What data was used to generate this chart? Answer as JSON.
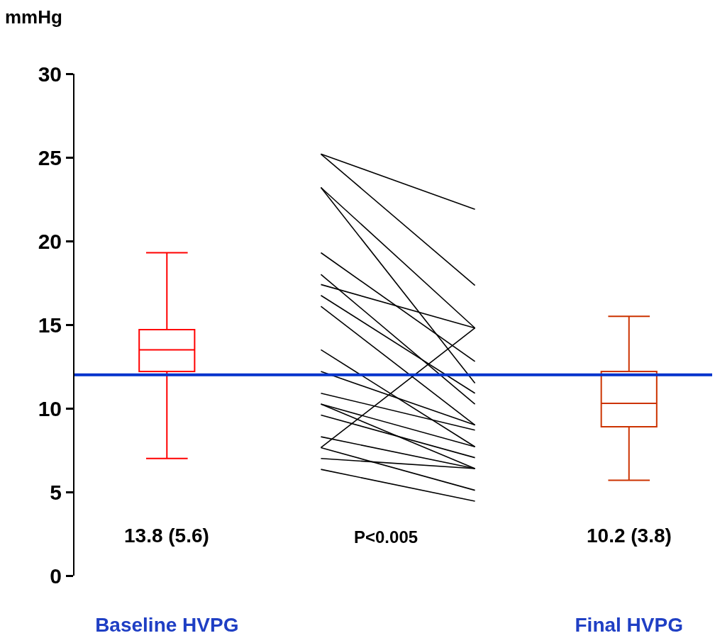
{
  "chart_data": {
    "type": "box",
    "ylabel": "mmHg",
    "categories": [
      "Baseline HVPG",
      null,
      null,
      "Final HVPG"
    ],
    "boxes": [
      {
        "low": 7.0,
        "q1": 12.2,
        "median": 13.5,
        "q3": 14.7,
        "high": 19.3
      },
      null,
      null,
      {
        "low": 5.7,
        "q1": 8.9,
        "median": 10.3,
        "q3": 12.2,
        "high": 15.5
      }
    ],
    "colors": [
      "#ff0000",
      null,
      null,
      "#cc3300"
    ],
    "ylim": [
      0,
      30
    ],
    "yticks": [
      0,
      5,
      10,
      15,
      20,
      25,
      30
    ],
    "ref_lines": [
      {
        "axis": "y",
        "value": 12,
        "color": "#0033cc"
      }
    ],
    "annotations": [
      "13.8 (5.6)",
      "P<0.005",
      "10.2 (3.8)"
    ],
    "series": [
      {
        "type": "line",
        "color": "#000000",
        "values": [
          null,
          25.2,
          21.9,
          null
        ]
      },
      {
        "type": "line",
        "color": "#000000",
        "values": [
          null,
          25.2,
          17.35,
          null
        ]
      },
      {
        "type": "line",
        "color": "#000000",
        "values": [
          null,
          23.2,
          14.8,
          null
        ]
      },
      {
        "type": "line",
        "color": "#000000",
        "values": [
          null,
          23.2,
          11.5,
          null
        ]
      },
      {
        "type": "line",
        "color": "#000000",
        "values": [
          null,
          19.3,
          12.8,
          null
        ]
      },
      {
        "type": "line",
        "color": "#000000",
        "values": [
          null,
          18.0,
          10.25,
          null
        ]
      },
      {
        "type": "line",
        "color": "#000000",
        "values": [
          null,
          17.4,
          14.8,
          null
        ]
      },
      {
        "type": "line",
        "color": "#000000",
        "values": [
          null,
          16.75,
          10.9,
          null
        ]
      },
      {
        "type": "line",
        "color": "#000000",
        "values": [
          null,
          16.1,
          9.0,
          null
        ]
      },
      {
        "type": "line",
        "color": "#000000",
        "values": [
          null,
          13.5,
          7.7,
          null
        ]
      },
      {
        "type": "line",
        "color": "#000000",
        "values": [
          null,
          12.2,
          9.0,
          null
        ]
      },
      {
        "type": "line",
        "color": "#000000",
        "values": [
          null,
          10.9,
          8.7,
          null
        ]
      },
      {
        "type": "line",
        "color": "#000000",
        "values": [
          null,
          10.25,
          7.7,
          null
        ]
      },
      {
        "type": "line",
        "color": "#000000",
        "values": [
          null,
          10.25,
          6.4,
          null
        ]
      },
      {
        "type": "line",
        "color": "#000000",
        "values": [
          null,
          9.6,
          7.05,
          null
        ]
      },
      {
        "type": "line",
        "color": "#000000",
        "values": [
          null,
          8.3,
          6.4,
          null
        ]
      },
      {
        "type": "line",
        "color": "#000000",
        "values": [
          null,
          7.65,
          14.8,
          null
        ]
      },
      {
        "type": "line",
        "color": "#000000",
        "values": [
          null,
          7.65,
          5.1,
          null
        ]
      },
      {
        "type": "line",
        "color": "#000000",
        "values": [
          null,
          7.0,
          6.4,
          null
        ]
      },
      {
        "type": "line",
        "color": "#000000",
        "values": [
          null,
          6.35,
          4.45,
          null
        ]
      }
    ]
  }
}
